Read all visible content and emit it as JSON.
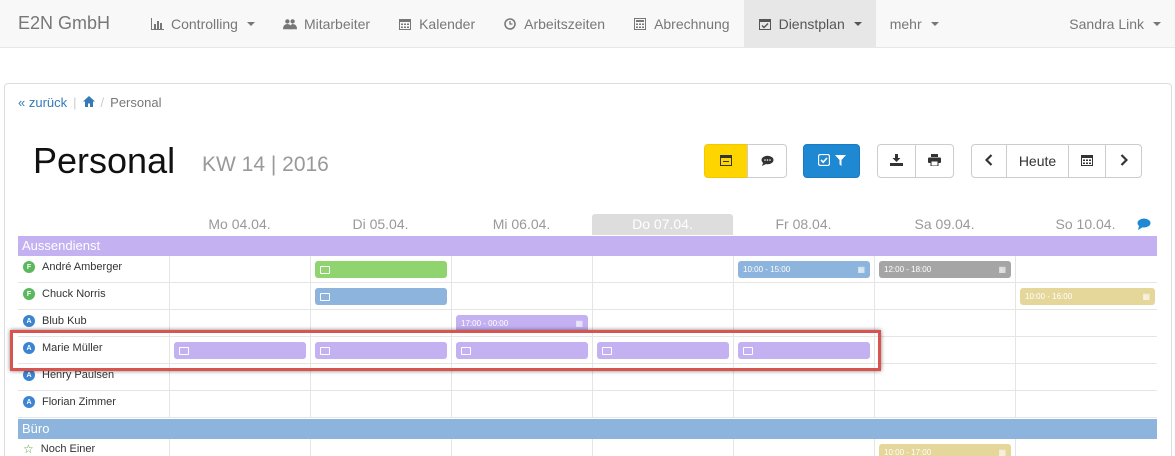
{
  "navbar": {
    "brand": "E2N GmbH",
    "items": [
      {
        "label": "Controlling",
        "icon": "bar-chart-icon",
        "dropdown": true
      },
      {
        "label": "Mitarbeiter",
        "icon": "users-icon",
        "dropdown": false
      },
      {
        "label": "Kalender",
        "icon": "calendar-icon",
        "dropdown": false
      },
      {
        "label": "Arbeitszeiten",
        "icon": "clock-icon",
        "dropdown": false
      },
      {
        "label": "Abrechnung",
        "icon": "calculator-icon",
        "dropdown": false
      },
      {
        "label": "Dienstplan",
        "icon": "calendar-check-icon",
        "dropdown": true,
        "active": true
      },
      {
        "label": "mehr",
        "dropdown": true
      }
    ],
    "user": "Sandra Link"
  },
  "breadcrumb": {
    "back": "« zurück",
    "current": "Personal"
  },
  "page": {
    "title": "Personal",
    "subtitle": "KW 14 | 2016"
  },
  "toolbar": {
    "today_label": "Heute"
  },
  "days": [
    "Mo 04.04.",
    "Di 05.04.",
    "Mi 06.04.",
    "Do 07.04.",
    "Fr 08.04.",
    "Sa 09.04.",
    "So 10.04."
  ],
  "today_index": 3,
  "groups": {
    "aussendienst": {
      "label": "Aussendienst",
      "color": "#c3b1f2"
    },
    "buero": {
      "label": "Büro",
      "color": "#8cb4dc"
    }
  },
  "employees": {
    "e0": {
      "name": "André Amberger",
      "badge": "F"
    },
    "e1": {
      "name": "Chuck Norris",
      "badge": "F"
    },
    "e2": {
      "name": "Blub Kub",
      "badge": "A"
    },
    "e3": {
      "name": "Marie Müller",
      "badge": "A"
    },
    "e4": {
      "name": "Henry Paulsen",
      "badge": "A"
    },
    "e5": {
      "name": "Florian Zimmer",
      "badge": "A"
    },
    "e6": {
      "name": "Noch Einer"
    }
  },
  "shifts": {
    "s1": "10:00 - 15:00",
    "s2": "12:00 - 18:00",
    "s3": "10:00 - 16:00",
    "s4": "17:00 - 00:00",
    "s5": "10:00 - 17:00"
  },
  "colors": {
    "green": "#8fd46f",
    "blue": "#8cb4dc",
    "grey": "#a5a5a5",
    "khaki": "#e5d69a",
    "purple": "#c3b1f2",
    "yellow": "#ffd500",
    "primary": "#1e88d2",
    "highlight": "#d9534f"
  }
}
